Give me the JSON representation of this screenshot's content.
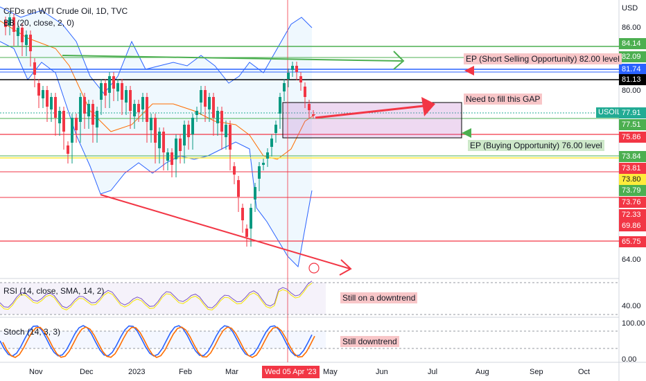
{
  "header": {
    "symbol_title": "CFDs on WTI Crude Oil, 1D, TVC",
    "bb_indicator": "BB (20, close, 2, 0)",
    "currency": "USD"
  },
  "price_axis": {
    "plain_ticks": [
      "86.00",
      "80.00",
      "64.00"
    ],
    "labels": [
      {
        "text": "84.14",
        "bg": "#4caf50",
        "fg": "#ffffff"
      },
      {
        "text": "82.09",
        "bg": "#4caf50",
        "fg": "#ffffff"
      },
      {
        "text": "81.74",
        "bg": "#2962ff",
        "fg": "#ffffff"
      },
      {
        "text": "81.13",
        "bg": "#000000",
        "fg": "#ffffff"
      },
      {
        "text": "77.91",
        "bg": "#22ab94",
        "fg": "#ffffff"
      },
      {
        "text": "77.51",
        "bg": "#4caf50",
        "fg": "#ffffff"
      },
      {
        "text": "75.86",
        "bg": "#f23645",
        "fg": "#ffffff"
      },
      {
        "text": "73.84",
        "bg": "#4caf50",
        "fg": "#ffffff"
      },
      {
        "text": "73.81",
        "bg": "#f23645",
        "fg": "#ffffff"
      },
      {
        "text": "73.80",
        "bg": "#ffeb3b",
        "fg": "#131722"
      },
      {
        "text": "73.79",
        "bg": "#4caf50",
        "fg": "#ffffff"
      },
      {
        "text": "73.76",
        "bg": "#f23645",
        "fg": "#ffffff"
      },
      {
        "text": "72.33",
        "bg": "#f23645",
        "fg": "#ffffff"
      },
      {
        "text": "69.86",
        "bg": "#f23645",
        "fg": "#ffffff"
      },
      {
        "text": "65.75",
        "bg": "#f23645",
        "fg": "#ffffff"
      }
    ],
    "symbol_tag": "USOIL"
  },
  "annotations": {
    "short_opportunity": "EP (Short Selling Opportunity) 82.00 level",
    "fill_gap": "Need to fill this GAP",
    "buy_opportunity": "EP (Buying Opportunity) 76.00 level",
    "rsi_note": "Still on a downtrend",
    "stoch_note": "Still downtrend"
  },
  "rsi_panel": {
    "title": "RSI (14, close, SMA, 14, 2)",
    "tick": "40.00"
  },
  "stoch_panel": {
    "title": "Stoch (14, 3, 3)",
    "tick_top": "100.00",
    "tick_bottom": "0.00"
  },
  "time_axis": {
    "months": [
      "Nov",
      "Dec",
      "2023",
      "Feb",
      "Mar",
      "May",
      "Jun",
      "Jul",
      "Aug",
      "Sep",
      "Oct"
    ],
    "crosshair_date": "Wed 05 Apr '23"
  },
  "colors": {
    "bull": "#089981",
    "bear": "#f23645",
    "bb_band": "#2962ff",
    "bb_basis": "#ff6d00",
    "rsi_line": "#7e57c2",
    "stoch_k": "#2962ff",
    "stoch_d": "#ff6d00"
  }
}
